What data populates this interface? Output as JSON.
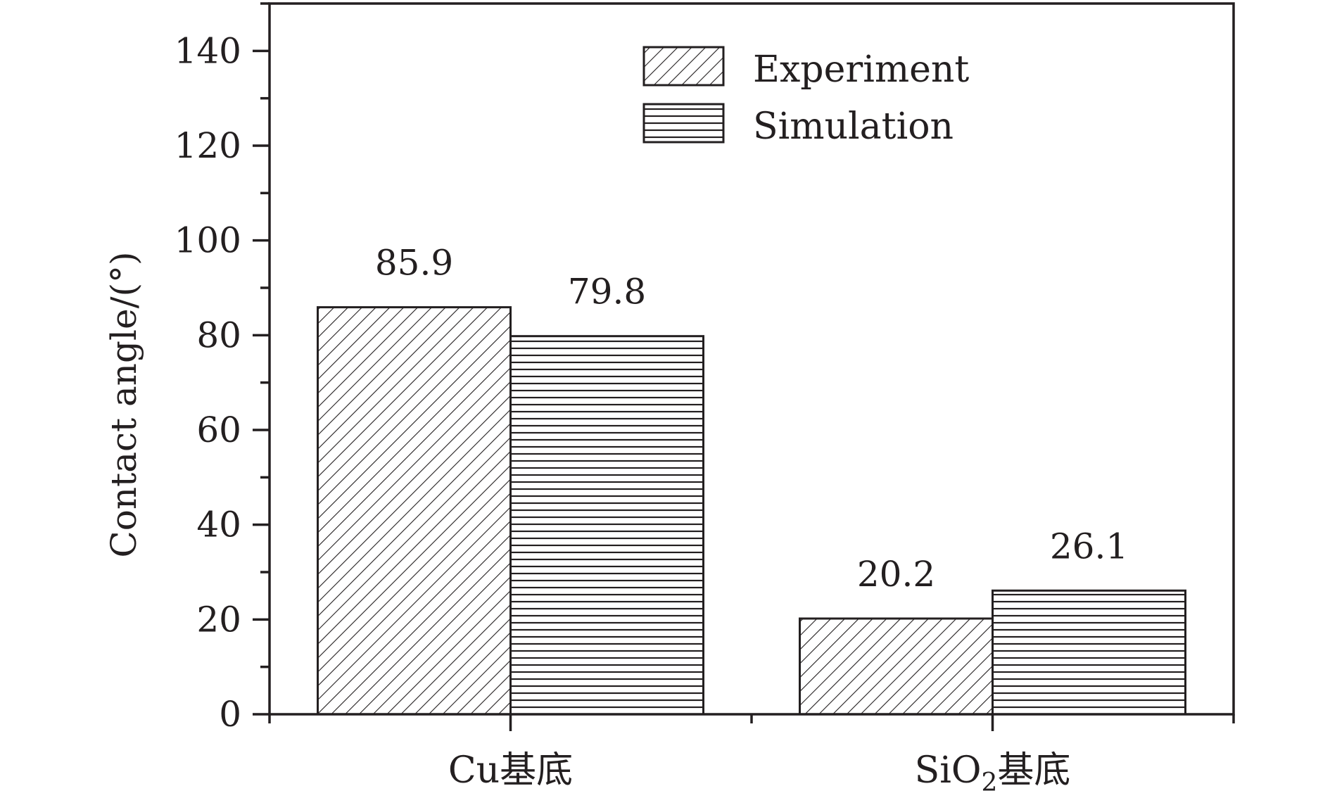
{
  "chart_data": {
    "type": "bar",
    "categories": [
      "Cu基底",
      "SiO₂基底"
    ],
    "category_parts": [
      {
        "main": "Cu",
        "sub": "",
        "suffix": "基底"
      },
      {
        "main": "SiO",
        "sub": "2",
        "suffix": "基底"
      }
    ],
    "series": [
      {
        "name": "Experiment",
        "values": [
          85.9,
          20.2
        ],
        "pattern": "diagonal-hatch"
      },
      {
        "name": "Simulation",
        "values": [
          79.8,
          26.1
        ],
        "pattern": "horizontal-hatch"
      }
    ],
    "data_labels": [
      [
        "85.9",
        "20.2"
      ],
      [
        "79.8",
        "26.1"
      ]
    ],
    "ylabel": "Contact angle/(°)",
    "xlabel": "",
    "ylim": [
      0,
      150
    ],
    "yticks": [
      0,
      20,
      40,
      60,
      80,
      100,
      120,
      140
    ],
    "ytick_labels": [
      "0",
      "20",
      "40",
      "60",
      "80",
      "100",
      "120",
      "140"
    ],
    "grid": false,
    "legend_position": "top-center",
    "colors": {
      "ink": "#231f20",
      "fill": "#ffffff"
    }
  }
}
